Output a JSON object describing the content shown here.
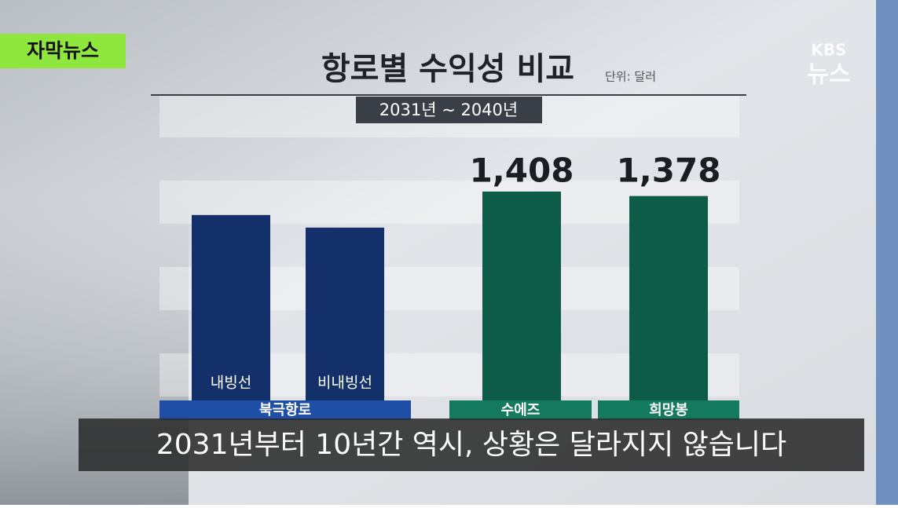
{
  "chart_data": {
    "type": "bar",
    "title": "항로별 수익성 비교",
    "unit": "단위: 달러",
    "period": "2031년 ~ 2040년",
    "categories": [
      "내빙선",
      "비내빙선",
      null,
      null
    ],
    "values": [
      1250,
      1165,
      1408,
      1378
    ],
    "value_labels": [
      null,
      null,
      "1,408",
      "1,378"
    ],
    "colors": [
      "#13306a",
      "#13306a",
      "#0c5c48",
      "#0c5c48"
    ],
    "group_labels": [
      "북극항로",
      "수에즈",
      "희망봉"
    ],
    "group_colors": [
      "#1f4ea6",
      "#137a5e",
      "#137a5e"
    ],
    "ylim": [
      0,
      1600
    ]
  },
  "overlay": {
    "badge": "자막뉴스",
    "logo_top": "KBS",
    "logo_bottom": "뉴스",
    "caption": "2031년부터 10년간 역시, 상황은 달라지지 않습니다"
  }
}
